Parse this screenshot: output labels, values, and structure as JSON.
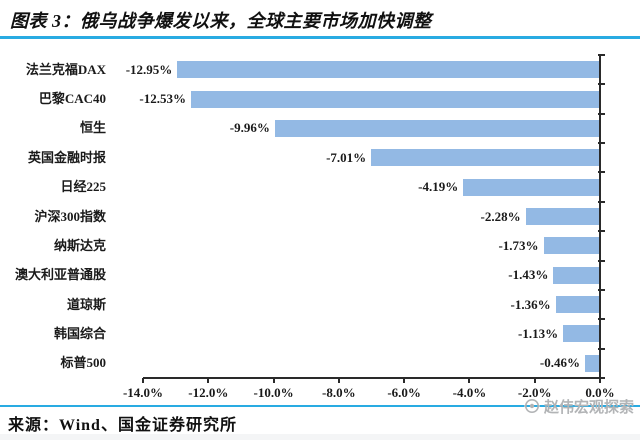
{
  "header": {
    "title": "图表 3：俄乌战争爆发以来，全球主要市场加快调整"
  },
  "chart_data": {
    "type": "bar",
    "orientation": "horizontal",
    "title": "俄乌战争爆发以来，全球主要市场加快调整",
    "categories": [
      "法兰克福DAX",
      "巴黎CAC40",
      "恒生",
      "英国金融时报",
      "日经225",
      "沪深300指数",
      "纳斯达克",
      "澳大利亚普通股",
      "道琼斯",
      "韩国综合",
      "标普500"
    ],
    "values": [
      -12.95,
      -12.53,
      -9.96,
      -7.01,
      -4.19,
      -2.28,
      -1.73,
      -1.43,
      -1.36,
      -1.13,
      -0.46
    ],
    "data_labels": [
      "-12.95%",
      "-12.53%",
      "-9.96%",
      "-7.01%",
      "-4.19%",
      "-2.28%",
      "-1.73%",
      "-1.43%",
      "-1.36%",
      "-1.13%",
      "-0.46%"
    ],
    "x_ticks": [
      "-14.0%",
      "-12.0%",
      "-10.0%",
      "-8.0%",
      "-6.0%",
      "-4.0%",
      "-2.0%",
      "0.0%"
    ],
    "xlim": [
      -14,
      0
    ],
    "grid": false,
    "legend": "none",
    "value_axis_position": "bottom",
    "category_axis_position": "right",
    "bar_color": "#93b9e4",
    "axis_color": "#2a2a2a"
  },
  "footer": {
    "source": "来源：Wind、国金证券研究所",
    "watermark": "赵伟宏观探索"
  },
  "colors": {
    "accent_line": "#29abe2",
    "bar": "#93b9e4",
    "watermark_gray": "#b2b4b6"
  }
}
